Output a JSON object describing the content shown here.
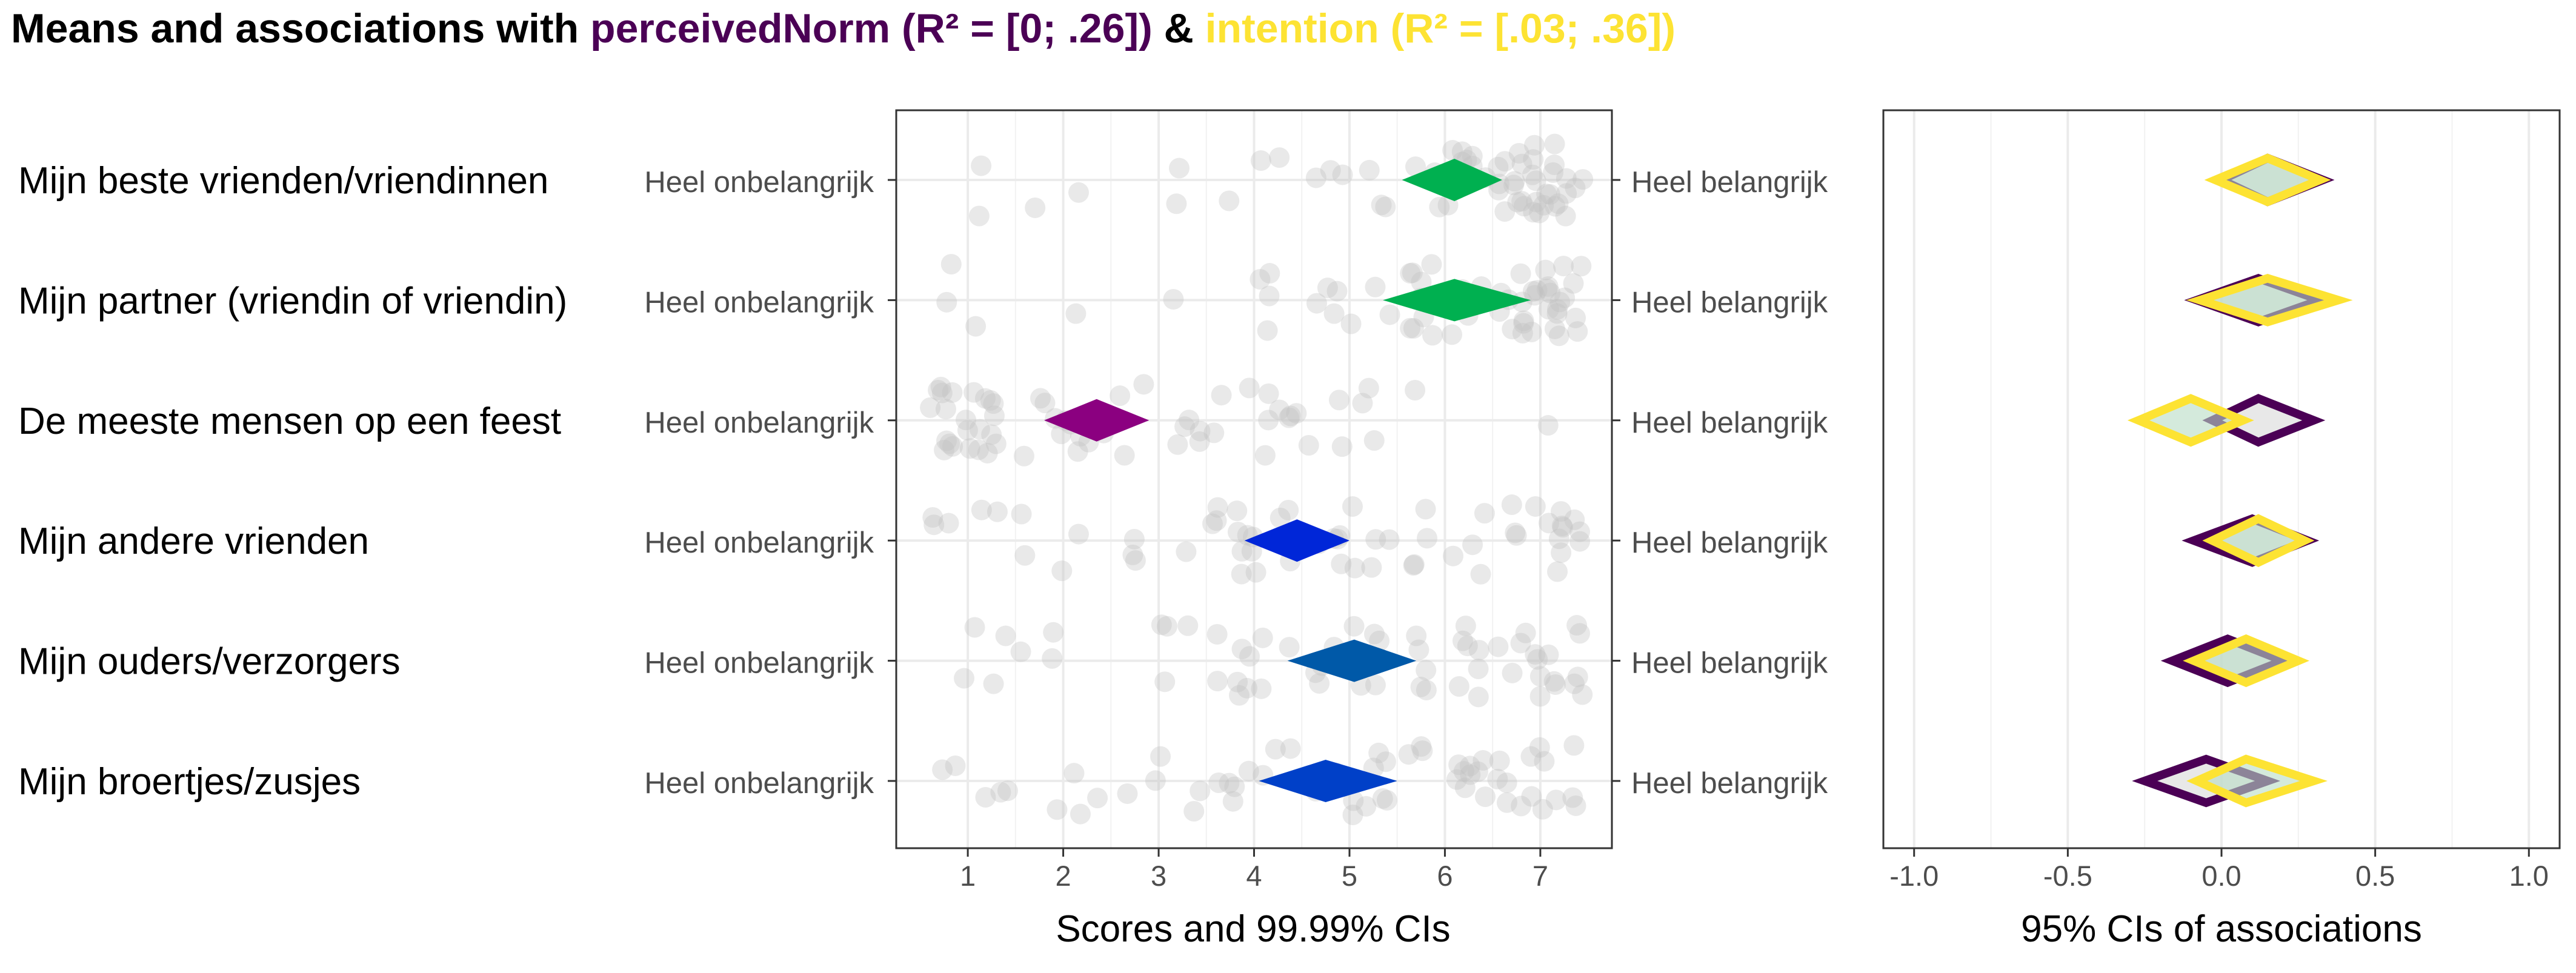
{
  "title": {
    "prefix": "Means and associations with ",
    "var1": "perceivedNorm (R² = [0; .26])",
    "joiner": " & ",
    "var2": "intention (R² = [.03; .36])",
    "var1_color": "#4B0055",
    "var2_color": "#FDE333"
  },
  "chart_data": [
    {
      "type": "scatter",
      "panel": "scores",
      "xlabel": "Scores and 99.99% CIs",
      "xlim": [
        0.25,
        7.75
      ],
      "x_ticks": [
        "1",
        "2",
        "3",
        "4",
        "5",
        "6",
        "7"
      ],
      "categories": [
        "Mijn beste vrienden/vriendinnen",
        "Mijn partner (vriendin of vriendin)",
        "De meeste mensen op een feest",
        "Mijn andere vrienden",
        "Mijn ouders/verzorgers",
        "Mijn broertjes/zusjes"
      ],
      "anchor_low": "Heel onbelangrijk",
      "anchor_high": "Heel belangrijk",
      "means": [
        {
          "mean": 6.1,
          "ci": [
            5.55,
            6.6
          ],
          "color": "#00B050"
        },
        {
          "mean": 6.1,
          "ci": [
            5.35,
            6.9
          ],
          "color": "#00B050"
        },
        {
          "mean": 2.35,
          "ci": [
            1.8,
            2.9
          ],
          "color": "#8B0080"
        },
        {
          "mean": 4.45,
          "ci": [
            3.9,
            5.0
          ],
          "color": "#0026D8"
        },
        {
          "mean": 5.05,
          "ci": [
            4.35,
            5.7
          ],
          "color": "#0059A8"
        },
        {
          "mean": 4.75,
          "ci": [
            4.05,
            5.5
          ],
          "color": "#0040C8"
        }
      ],
      "points_color": "#bfbfbf",
      "grid": true
    },
    {
      "type": "scatter",
      "panel": "associations",
      "xlabel": "95% CIs of associations",
      "xlim": [
        -1.1,
        1.1
      ],
      "x_ticks": [
        "-1.0",
        "-0.5",
        "0.0",
        "0.5",
        "1.0"
      ],
      "series": [
        {
          "name": "perceivedNorm",
          "color": "#4B0055",
          "values": [
            {
              "r": 0.15,
              "ci": [
                0.0,
                0.33
              ]
            },
            {
              "r": 0.12,
              "ci": [
                -0.08,
                0.32
              ]
            },
            {
              "r": 0.12,
              "ci": [
                -0.03,
                0.3
              ]
            },
            {
              "r": 0.1,
              "ci": [
                -0.09,
                0.28
              ]
            },
            {
              "r": 0.02,
              "ci": [
                -0.16,
                0.2
              ]
            },
            {
              "r": -0.05,
              "ci": [
                -0.25,
                0.15
              ]
            }
          ]
        },
        {
          "name": "intention",
          "color": "#FDE333",
          "values": [
            {
              "r": 0.15,
              "ci": [
                -0.02,
                0.32
              ]
            },
            {
              "r": 0.15,
              "ci": [
                -0.07,
                0.38
              ]
            },
            {
              "r": -0.1,
              "ci": [
                -0.27,
                0.07
              ]
            },
            {
              "r": 0.12,
              "ci": [
                -0.03,
                0.27
              ]
            },
            {
              "r": 0.08,
              "ci": [
                -0.09,
                0.25
              ]
            },
            {
              "r": 0.08,
              "ci": [
                -0.08,
                0.3
              ]
            }
          ]
        }
      ],
      "grid": true
    }
  ]
}
